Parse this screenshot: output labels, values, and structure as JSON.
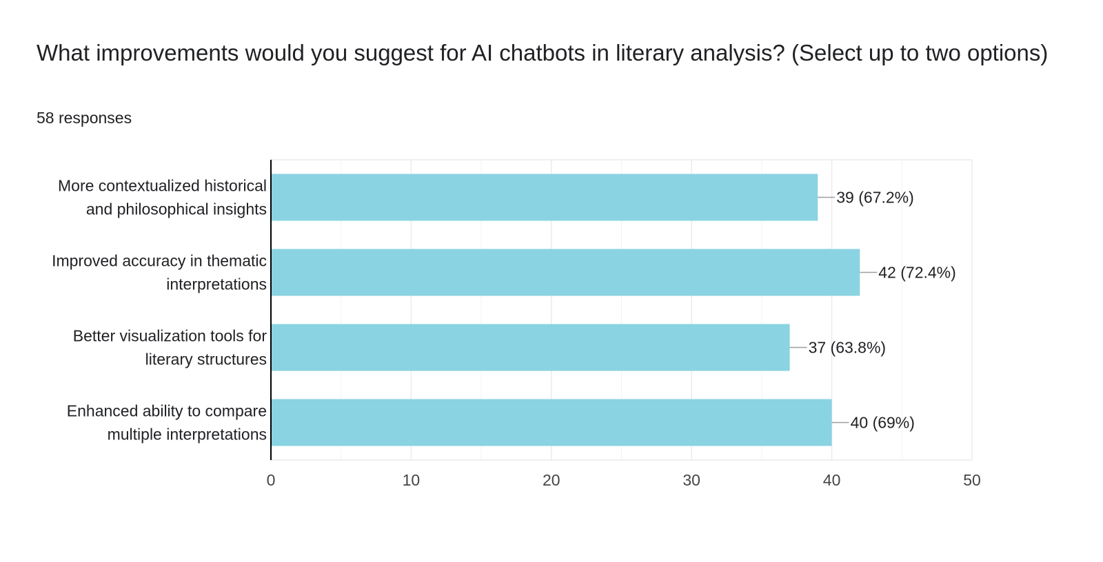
{
  "question": {
    "title": "What improvements would you suggest for AI chatbots in literary analysis? (Select up to two options)",
    "responses": "58 responses"
  },
  "colors": {
    "bar": "#8AD3E2",
    "axis": "#000000",
    "grid": "#EBEBEB",
    "text": "#202124",
    "tick_text": "#444444",
    "leader": "#9E9E9E"
  },
  "chart_data": {
    "type": "bar",
    "orientation": "horizontal",
    "categories": [
      [
        "More contextualized historical",
        "and philosophical insights"
      ],
      [
        "Improved accuracy in thematic",
        "interpretations"
      ],
      [
        "Better visualization tools for",
        "literary structures"
      ],
      [
        "Enhanced ability to compare",
        "multiple interpretations"
      ]
    ],
    "values": [
      39,
      42,
      37,
      40
    ],
    "data_labels": [
      "39 (67.2%)",
      "42 (72.4%)",
      "37 (63.8%)",
      "40 (69%)"
    ],
    "xlim": [
      0,
      50
    ],
    "xticks": [
      0,
      10,
      20,
      30,
      40,
      50
    ],
    "grid": true,
    "title": "",
    "xlabel": "",
    "ylabel": ""
  }
}
